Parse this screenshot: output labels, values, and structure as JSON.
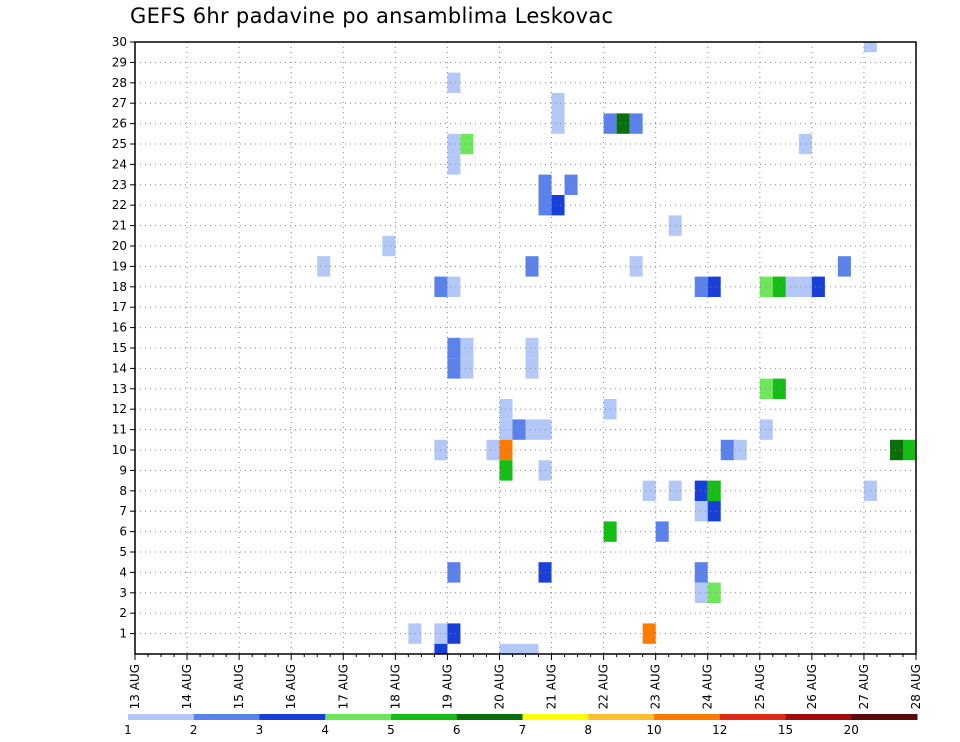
{
  "chart_data": {
    "type": "heatmap",
    "title": "GEFS 6hr padavine po ansamblima Leskovac",
    "xlabel": "",
    "ylabel": "",
    "x_start": "13 AUG 00Z",
    "x_end": "28 AUG 00Z",
    "x_step_hours": 6,
    "x_tick_labels": [
      "13 AUG",
      "14 AUG",
      "15 AUG",
      "16 AUG",
      "17 AUG",
      "18 AUG",
      "19 AUG",
      "20 AUG",
      "21 AUG",
      "22 AUG",
      "23 AUG",
      "24 AUG",
      "25 AUG",
      "26 AUG",
      "27 AUG",
      "28 AUG"
    ],
    "y_tick_labels": [
      "1",
      "2",
      "3",
      "4",
      "5",
      "6",
      "7",
      "8",
      "9",
      "10",
      "11",
      "12",
      "13",
      "14",
      "15",
      "16",
      "17",
      "18",
      "19",
      "20",
      "21",
      "22",
      "23",
      "24",
      "25",
      "26",
      "27",
      "28",
      "29",
      "30"
    ],
    "ylim": [
      0,
      30
    ],
    "grid": true,
    "legend": {
      "placement": "bottom",
      "colors": [
        "#b4c8f8",
        "#5a82ea",
        "#1840d8",
        "#6ee85a",
        "#14be14",
        "#0a6e0a",
        "#ffff00",
        "#ffbe32",
        "#ff7a00",
        "#e02814",
        "#a00a0a",
        "#5a0a0a"
      ],
      "labels": [
        "1",
        "2",
        "3",
        "4",
        "5",
        "6",
        "7",
        "8",
        "10",
        "12",
        "15",
        "20"
      ]
    },
    "cells": [
      {
        "member": 30,
        "time": "27 AUG 00Z",
        "color": "#b4c8f8"
      },
      {
        "member": 28,
        "time": "19 AUG 00Z",
        "color": "#b4c8f8"
      },
      {
        "member": 27,
        "time": "21 AUG 00Z",
        "color": "#b4c8f8"
      },
      {
        "member": 26,
        "time": "21 AUG 00Z",
        "color": "#b4c8f8"
      },
      {
        "member": 26,
        "time": "22 AUG 00Z",
        "color": "#5a82ea"
      },
      {
        "member": 26,
        "time": "22 AUG 06Z",
        "color": "#0a6e0a"
      },
      {
        "member": 26,
        "time": "22 AUG 12Z",
        "color": "#5a82ea"
      },
      {
        "member": 25,
        "time": "19 AUG 00Z",
        "color": "#b4c8f8"
      },
      {
        "member": 25,
        "time": "19 AUG 06Z",
        "color": "#6ee85a"
      },
      {
        "member": 25,
        "time": "25 AUG 18Z",
        "color": "#b4c8f8"
      },
      {
        "member": 24,
        "time": "19 AUG 00Z",
        "color": "#b4c8f8"
      },
      {
        "member": 23,
        "time": "20 AUG 18Z",
        "color": "#5a82ea"
      },
      {
        "member": 23,
        "time": "21 AUG 06Z",
        "color": "#5a82ea"
      },
      {
        "member": 22,
        "time": "20 AUG 18Z",
        "color": "#5a82ea"
      },
      {
        "member": 22,
        "time": "21 AUG 00Z",
        "color": "#1840d8"
      },
      {
        "member": 21,
        "time": "23 AUG 06Z",
        "color": "#b4c8f8"
      },
      {
        "member": 20,
        "time": "17 AUG 18Z",
        "color": "#b4c8f8"
      },
      {
        "member": 19,
        "time": "16 AUG 12Z",
        "color": "#b4c8f8"
      },
      {
        "member": 19,
        "time": "20 AUG 12Z",
        "color": "#5a82ea"
      },
      {
        "member": 19,
        "time": "22 AUG 12Z",
        "color": "#b4c8f8"
      },
      {
        "member": 19,
        "time": "26 AUG 12Z",
        "color": "#5a82ea"
      },
      {
        "member": 18,
        "time": "18 AUG 18Z",
        "color": "#5a82ea"
      },
      {
        "member": 18,
        "time": "19 AUG 00Z",
        "color": "#b4c8f8"
      },
      {
        "member": 18,
        "time": "23 AUG 18Z",
        "color": "#5a82ea"
      },
      {
        "member": 18,
        "time": "24 AUG 00Z",
        "color": "#1840d8"
      },
      {
        "member": 18,
        "time": "25 AUG 00Z",
        "color": "#6ee85a"
      },
      {
        "member": 18,
        "time": "25 AUG 06Z",
        "color": "#14be14"
      },
      {
        "member": 18,
        "time": "25 AUG 12Z",
        "color": "#b4c8f8"
      },
      {
        "member": 18,
        "time": "25 AUG 18Z",
        "color": "#b4c8f8"
      },
      {
        "member": 18,
        "time": "26 AUG 00Z",
        "color": "#1840d8"
      },
      {
        "member": 15,
        "time": "19 AUG 00Z",
        "color": "#5a82ea"
      },
      {
        "member": 15,
        "time": "19 AUG 06Z",
        "color": "#b4c8f8"
      },
      {
        "member": 15,
        "time": "20 AUG 12Z",
        "color": "#b4c8f8"
      },
      {
        "member": 14,
        "time": "19 AUG 00Z",
        "color": "#5a82ea"
      },
      {
        "member": 14,
        "time": "19 AUG 06Z",
        "color": "#b4c8f8"
      },
      {
        "member": 14,
        "time": "20 AUG 12Z",
        "color": "#b4c8f8"
      },
      {
        "member": 13,
        "time": "25 AUG 00Z",
        "color": "#6ee85a"
      },
      {
        "member": 13,
        "time": "25 AUG 06Z",
        "color": "#14be14"
      },
      {
        "member": 12,
        "time": "20 AUG 00Z",
        "color": "#b4c8f8"
      },
      {
        "member": 12,
        "time": "22 AUG 00Z",
        "color": "#b4c8f8"
      },
      {
        "member": 11,
        "time": "20 AUG 00Z",
        "color": "#b4c8f8"
      },
      {
        "member": 11,
        "time": "20 AUG 06Z",
        "color": "#5a82ea"
      },
      {
        "member": 11,
        "time": "20 AUG 12Z",
        "color": "#b4c8f8"
      },
      {
        "member": 11,
        "time": "20 AUG 18Z",
        "color": "#b4c8f8"
      },
      {
        "member": 11,
        "time": "25 AUG 00Z",
        "color": "#b4c8f8"
      },
      {
        "member": 10,
        "time": "18 AUG 18Z",
        "color": "#b4c8f8"
      },
      {
        "member": 10,
        "time": "19 AUG 18Z",
        "color": "#b4c8f8"
      },
      {
        "member": 10,
        "time": "20 AUG 00Z",
        "color": "#ff7a00"
      },
      {
        "member": 10,
        "time": "24 AUG 06Z",
        "color": "#5a82ea"
      },
      {
        "member": 10,
        "time": "24 AUG 12Z",
        "color": "#b4c8f8"
      },
      {
        "member": 10,
        "time": "27 AUG 12Z",
        "color": "#0a6e0a"
      },
      {
        "member": 10,
        "time": "27 AUG 18Z",
        "color": "#14be14"
      },
      {
        "member": 9,
        "time": "20 AUG 00Z",
        "color": "#14be14"
      },
      {
        "member": 9,
        "time": "20 AUG 18Z",
        "color": "#b4c8f8"
      },
      {
        "member": 8,
        "time": "22 AUG 18Z",
        "color": "#b4c8f8"
      },
      {
        "member": 8,
        "time": "23 AUG 06Z",
        "color": "#b4c8f8"
      },
      {
        "member": 8,
        "time": "23 AUG 18Z",
        "color": "#1840d8"
      },
      {
        "member": 8,
        "time": "24 AUG 00Z",
        "color": "#14be14"
      },
      {
        "member": 8,
        "time": "27 AUG 00Z",
        "color": "#b4c8f8"
      },
      {
        "member": 7,
        "time": "23 AUG 18Z",
        "color": "#b4c8f8"
      },
      {
        "member": 7,
        "time": "24 AUG 00Z",
        "color": "#1840d8"
      },
      {
        "member": 6,
        "time": "22 AUG 00Z",
        "color": "#14be14"
      },
      {
        "member": 6,
        "time": "23 AUG 00Z",
        "color": "#5a82ea"
      },
      {
        "member": 4,
        "time": "19 AUG 00Z",
        "color": "#5a82ea"
      },
      {
        "member": 4,
        "time": "20 AUG 18Z",
        "color": "#1840d8"
      },
      {
        "member": 4,
        "time": "23 AUG 18Z",
        "color": "#5a82ea"
      },
      {
        "member": 3,
        "time": "23 AUG 18Z",
        "color": "#b4c8f8"
      },
      {
        "member": 3,
        "time": "24 AUG 00Z",
        "color": "#6ee85a"
      },
      {
        "member": 1,
        "time": "18 AUG 06Z",
        "color": "#b4c8f8"
      },
      {
        "member": 1,
        "time": "18 AUG 18Z",
        "color": "#b4c8f8"
      },
      {
        "member": 1,
        "time": "19 AUG 00Z",
        "color": "#1840d8"
      },
      {
        "member": 1,
        "time": "22 AUG 18Z",
        "color": "#ff7a00"
      },
      {
        "member": 0,
        "time": "18 AUG 18Z",
        "color": "#1840d8"
      },
      {
        "member": 0,
        "time": "20 AUG 00Z",
        "color": "#b4c8f8"
      },
      {
        "member": 0,
        "time": "20 AUG 06Z",
        "color": "#b4c8f8"
      },
      {
        "member": 0,
        "time": "20 AUG 12Z",
        "color": "#b4c8f8"
      }
    ]
  }
}
